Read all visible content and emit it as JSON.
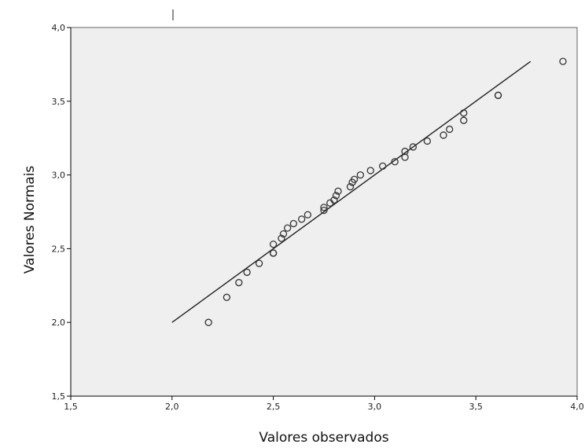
{
  "chart_data": {
    "type": "scatter",
    "title": "",
    "xlabel": "Valores observados",
    "ylabel": "Valores Normais",
    "xlim": [
      1.5,
      4.0
    ],
    "ylim": [
      1.5,
      4.0
    ],
    "x_ticks": [
      "1,5",
      "2,0",
      "2,5",
      "3,0",
      "3,5",
      "4,0"
    ],
    "y_ticks": [
      "1,5",
      "2,0",
      "2,5",
      "3,0",
      "3,5",
      "4,0"
    ],
    "grid": false,
    "legend": "none",
    "background_color": "#efefef",
    "reference_line": {
      "x": [
        2.0,
        3.77
      ],
      "y": [
        2.0,
        3.77
      ]
    },
    "series": [
      {
        "points": [
          [
            2.18,
            2.0
          ],
          [
            2.27,
            2.17
          ],
          [
            2.33,
            2.27
          ],
          [
            2.37,
            2.34
          ],
          [
            2.43,
            2.4
          ],
          [
            2.5,
            2.47
          ],
          [
            2.5,
            2.47
          ],
          [
            2.5,
            2.53
          ],
          [
            2.54,
            2.57
          ],
          [
            2.55,
            2.6
          ],
          [
            2.57,
            2.64
          ],
          [
            2.6,
            2.67
          ],
          [
            2.64,
            2.7
          ],
          [
            2.67,
            2.73
          ],
          [
            2.75,
            2.76
          ],
          [
            2.75,
            2.78
          ],
          [
            2.78,
            2.81
          ],
          [
            2.8,
            2.83
          ],
          [
            2.81,
            2.86
          ],
          [
            2.82,
            2.89
          ],
          [
            2.88,
            2.92
          ],
          [
            2.89,
            2.95
          ],
          [
            2.9,
            2.97
          ],
          [
            2.93,
            3.0
          ],
          [
            2.98,
            3.03
          ],
          [
            3.04,
            3.06
          ],
          [
            3.1,
            3.09
          ],
          [
            3.15,
            3.12
          ],
          [
            3.15,
            3.16
          ],
          [
            3.19,
            3.19
          ],
          [
            3.26,
            3.23
          ],
          [
            3.34,
            3.27
          ],
          [
            3.37,
            3.31
          ],
          [
            3.44,
            3.37
          ],
          [
            3.44,
            3.42
          ],
          [
            3.61,
            3.54
          ],
          [
            3.61,
            3.54
          ],
          [
            3.93,
            3.77
          ]
        ]
      }
    ]
  }
}
